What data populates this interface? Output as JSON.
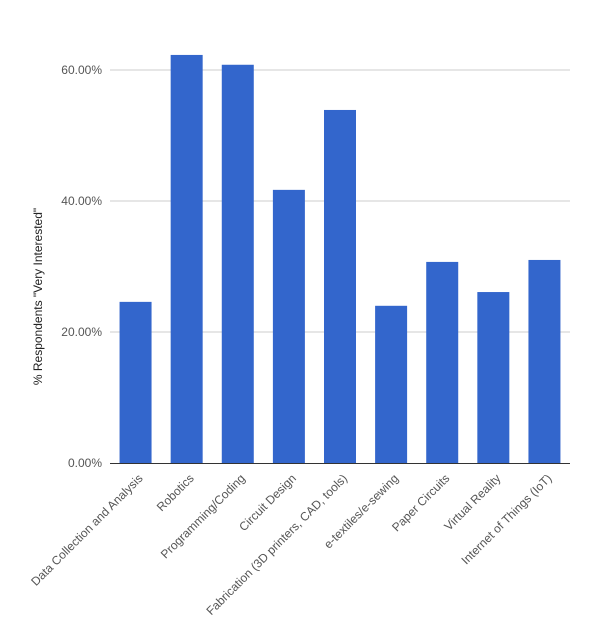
{
  "chart_data": {
    "type": "bar",
    "title": "",
    "xlabel": "",
    "ylabel": "% Respondents \"Very Interested\"",
    "categories": [
      "Data Collection and Analysis",
      "Robotics",
      "Programming/Coding",
      "Circuit Design",
      "Fabrication (3D printers, CAD, tools)",
      "e-textiles/e-sewing",
      "Paper Circuits",
      "Virtual Reality",
      "Internet of Things (IoT)"
    ],
    "values": [
      24.6,
      62.3,
      60.8,
      41.7,
      53.9,
      24.0,
      30.7,
      26.1,
      31.0
    ],
    "ylim": [
      0,
      60
    ],
    "yticks": [
      0,
      20,
      40,
      60
    ],
    "ytick_labels": [
      "0.00%",
      "20.00%",
      "40.00%",
      "60.00%"
    ],
    "grid": true,
    "legend": "none",
    "bar_color": "#3366cc"
  }
}
